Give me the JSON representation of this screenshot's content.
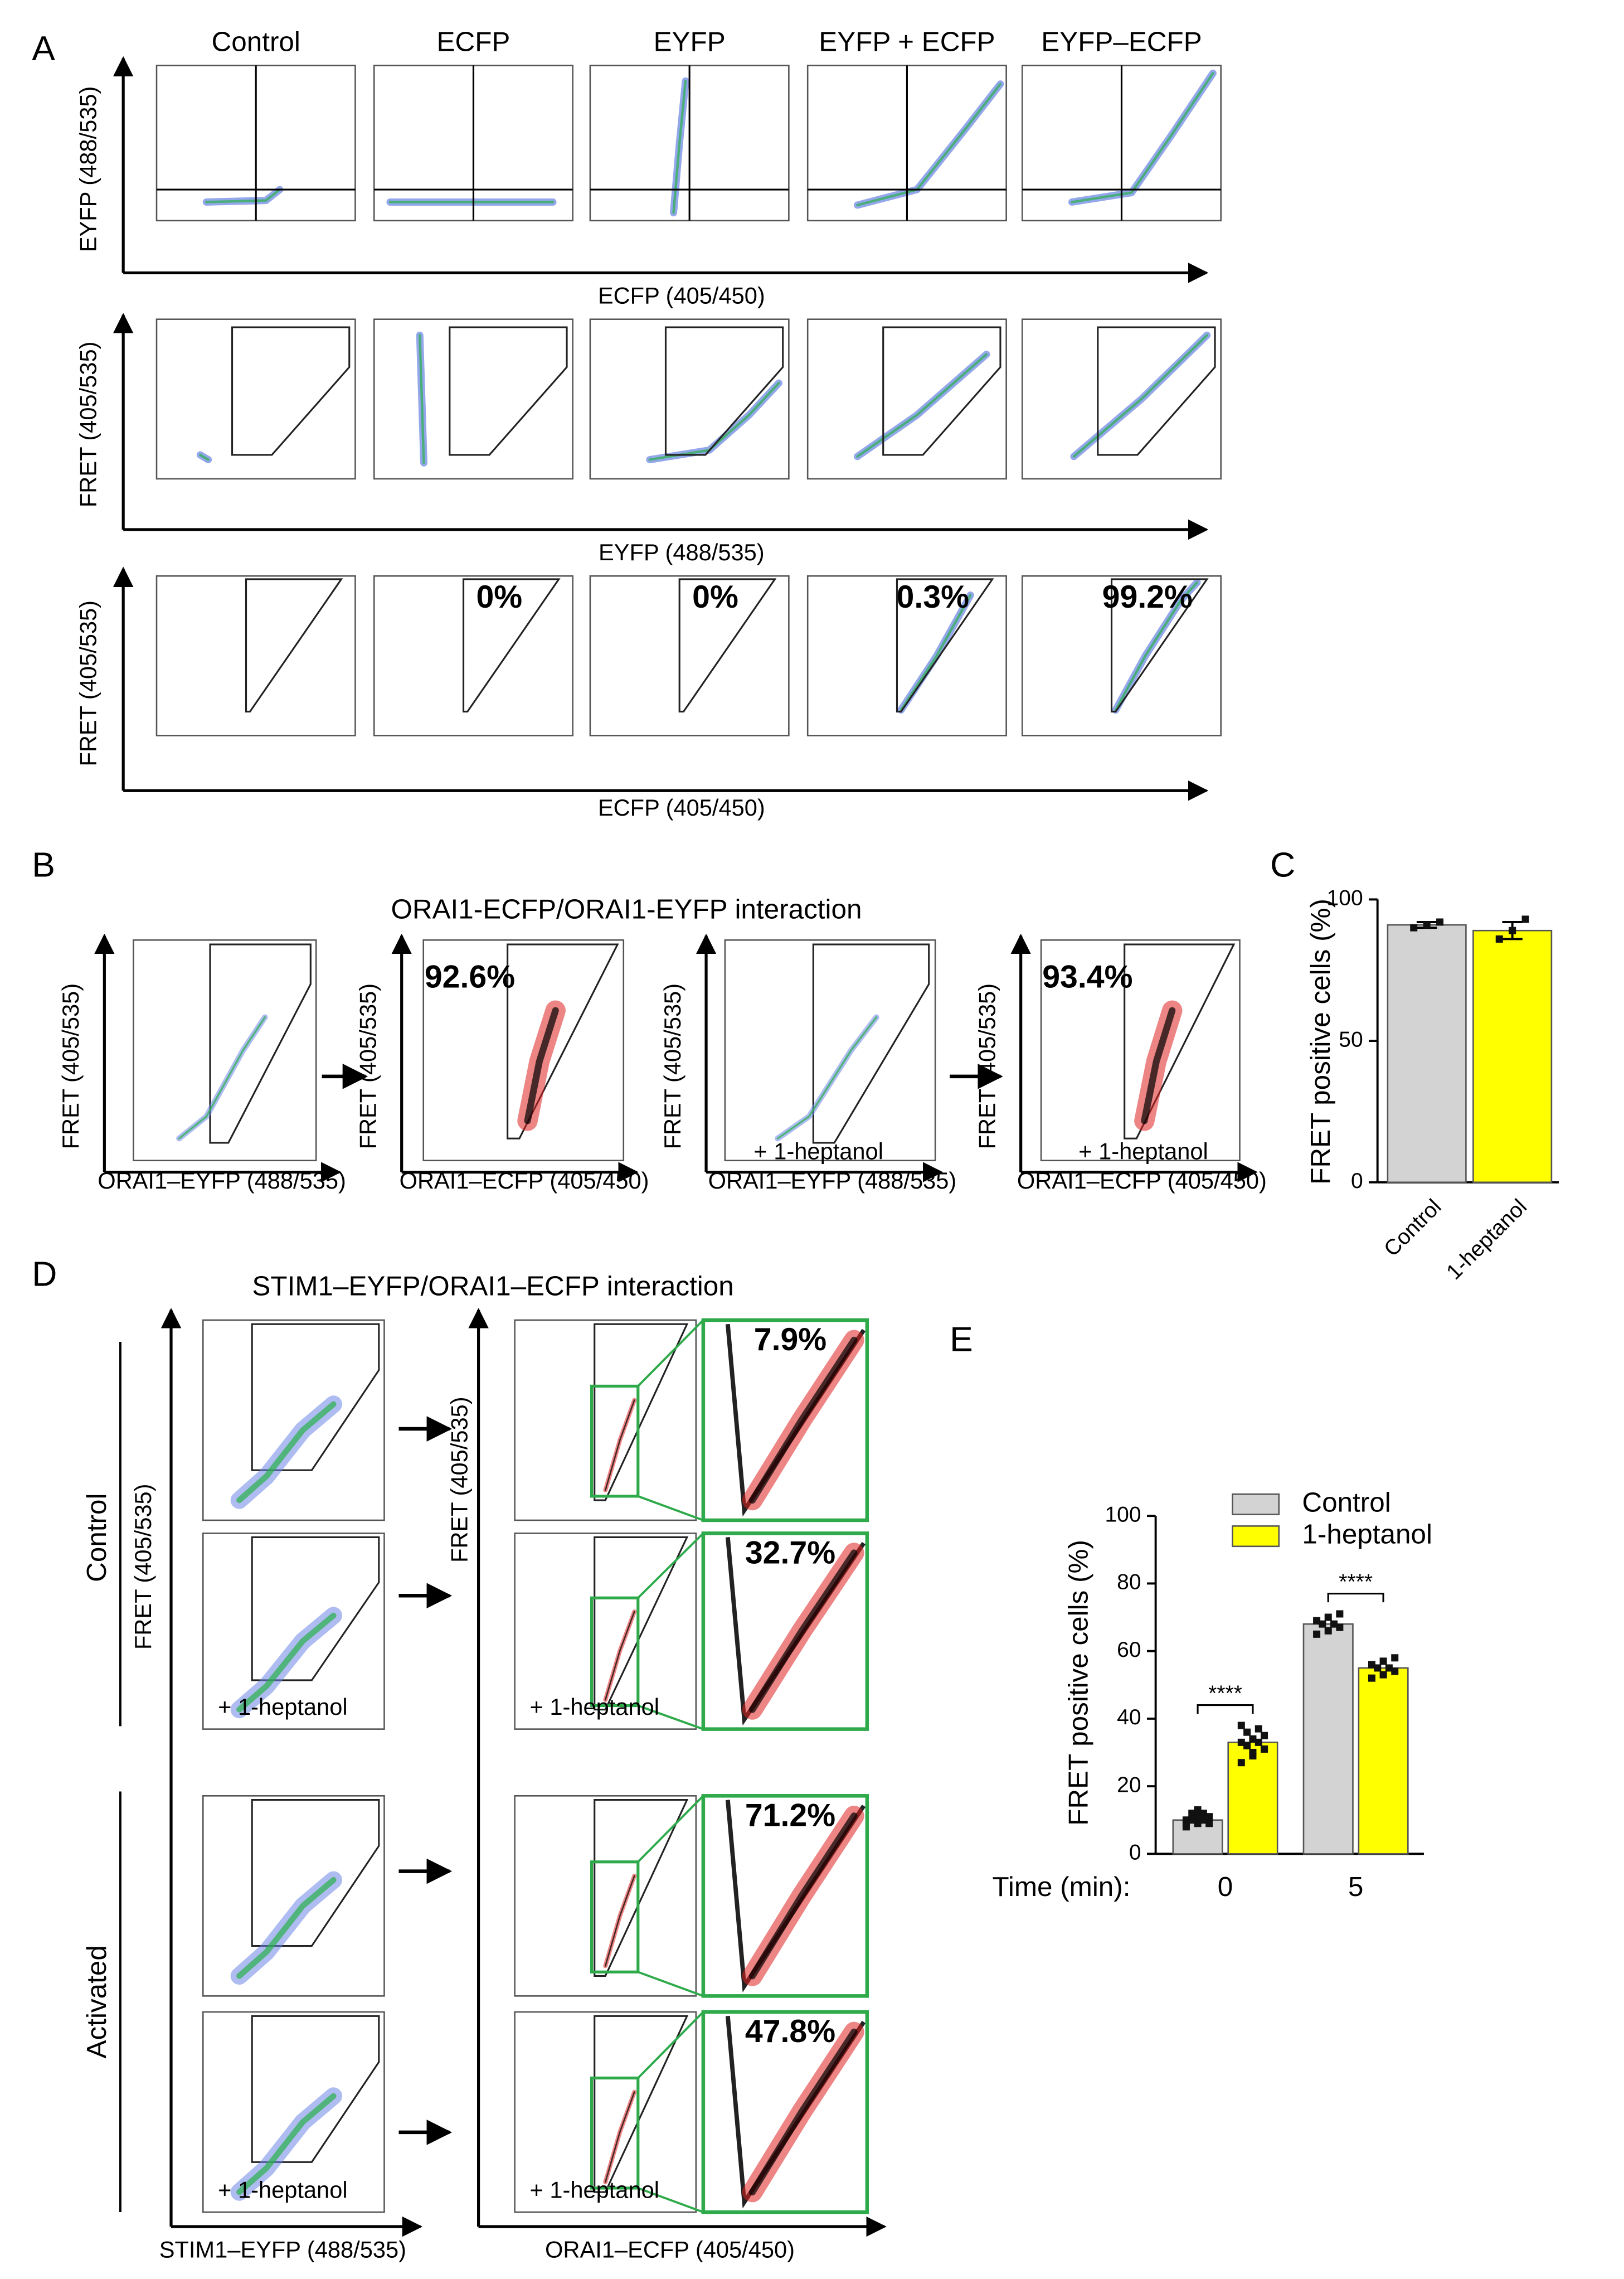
{
  "panel_labels": [
    "A",
    "B",
    "C",
    "D",
    "E"
  ],
  "panel_a": {
    "columns": [
      "Control",
      "ECFP",
      "EYFP",
      "EYFP + ECFP",
      "EYFP–ECFP"
    ],
    "rows": [
      {
        "y_label": "EYFP (488/535)",
        "x_label": "ECFP (405/450)"
      },
      {
        "y_label": "FRET (405/535)",
        "x_label": "EYFP (488/535)"
      },
      {
        "y_label": "FRET (405/535)",
        "x_label": "ECFP (405/450)",
        "percentages": [
          null,
          "0%",
          "0%",
          "0.3%",
          "99.2%"
        ]
      }
    ]
  },
  "panel_b": {
    "title": "ORAI1-ECFP/ORAI1-EYFP interaction",
    "plots": [
      {
        "y_label": "FRET (405/535)",
        "x_label": "ORAI1–EYFP (488/535)"
      },
      {
        "y_label": "FRET (405/535)",
        "x_label": "ORAI1–ECFP (405/450)",
        "percentage": "92.6%"
      },
      {
        "y_label": "FRET (405/535)",
        "x_label": "ORAI1–EYFP (488/535)",
        "note": "+ 1-heptanol"
      },
      {
        "y_label": "FRET (405/535)",
        "x_label": "ORAI1–ECFP (405/450)",
        "percentage": "93.4%",
        "note": "+ 1-heptanol"
      }
    ]
  },
  "panel_d": {
    "title": "STIM1–EYFP/ORAI1–ECFP interaction",
    "groups": [
      "Control",
      "Activated"
    ],
    "left_y_label": "FRET (405/535)",
    "left_x_label": "STIM1–EYFP (488/535)",
    "right_y_label": "FRET (405/535)",
    "right_x_label": "ORAI1–ECFP (405/450)",
    "percentages": [
      "7.9%",
      "32.7%",
      "71.2%",
      "47.8%"
    ],
    "note": "+ 1-heptanol"
  },
  "chart_data": [
    {
      "type": "bar",
      "y_label": "FRET positive cells (%)",
      "categories": [
        "Control",
        "1-heptanol"
      ],
      "values": [
        91,
        89
      ],
      "errors": [
        1,
        3
      ],
      "points": [
        [
          90,
          91,
          92
        ],
        [
          86,
          89,
          93
        ]
      ],
      "colors": [
        "#d3d3d3",
        "#ffff00"
      ],
      "ylim": [
        0,
        100
      ],
      "yticks": [
        0,
        50,
        100
      ]
    },
    {
      "type": "grouped_bar",
      "y_label": "FRET positive cells (%)",
      "x_label": "Time (min):",
      "categories": [
        "0",
        "5"
      ],
      "series": [
        {
          "name": "Control",
          "color": "#d3d3d3",
          "values": [
            10,
            68
          ],
          "points": [
            [
              8,
              9,
              9,
              10,
              10,
              10,
              11,
              11,
              12,
              12,
              9,
              13
            ],
            [
              65,
              66,
              67,
              68,
              68,
              69,
              70,
              71
            ]
          ]
        },
        {
          "name": "1-heptanol",
          "color": "#ffff00",
          "values": [
            33,
            55
          ],
          "points": [
            [
              27,
              29,
              31,
              32,
              33,
              33,
              34,
              35,
              36,
              37,
              38,
              30
            ],
            [
              52,
              53,
              54,
              55,
              55,
              56,
              57,
              58
            ]
          ]
        }
      ],
      "annotations": [
        "****",
        "****"
      ],
      "ylim": [
        0,
        100
      ],
      "yticks": [
        0,
        20,
        40,
        60,
        80,
        100
      ],
      "legend": "top"
    }
  ]
}
